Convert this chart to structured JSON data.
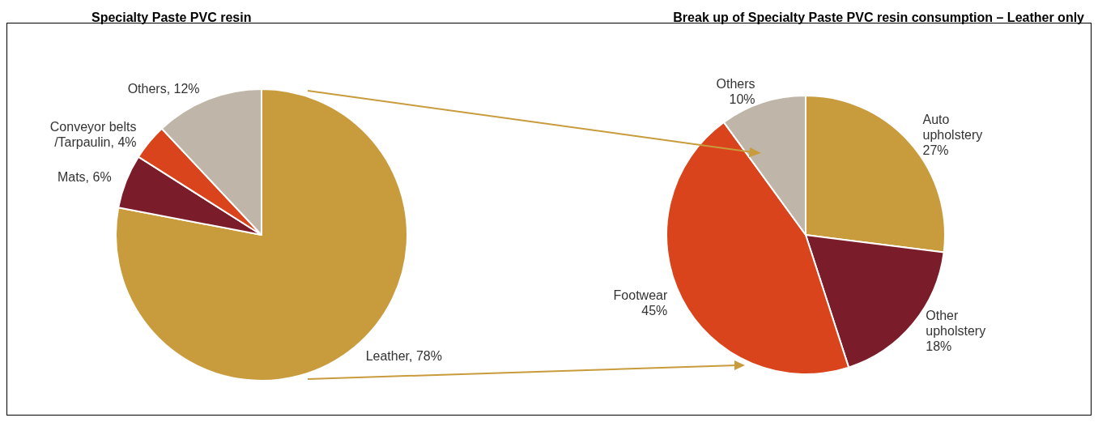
{
  "chart_data": [
    {
      "type": "pie",
      "title": "Specialty Paste PVC resin",
      "categories": [
        "Leather",
        "Mats",
        "Conveyor belts/Tarpaulin",
        "Others"
      ],
      "values": [
        78,
        6,
        4,
        12
      ],
      "value_labels": [
        "78%",
        "6%",
        "4%",
        "12%"
      ],
      "colors": [
        "#c89b3c",
        "#7b1c2a",
        "#d9441c",
        "#bfb5a8"
      ]
    },
    {
      "type": "pie",
      "title": "Break up of Specialty Paste PVC resin consumption – Leather only",
      "categories": [
        "Auto upholstery",
        "Other upholstery",
        "Footwear",
        "Others"
      ],
      "values": [
        27,
        18,
        45,
        10
      ],
      "value_labels": [
        "27%",
        "18%",
        "45%",
        "10%"
      ],
      "colors": [
        "#c89b3c",
        "#7b1c2a",
        "#d9441c",
        "#bfb5a8"
      ]
    }
  ]
}
